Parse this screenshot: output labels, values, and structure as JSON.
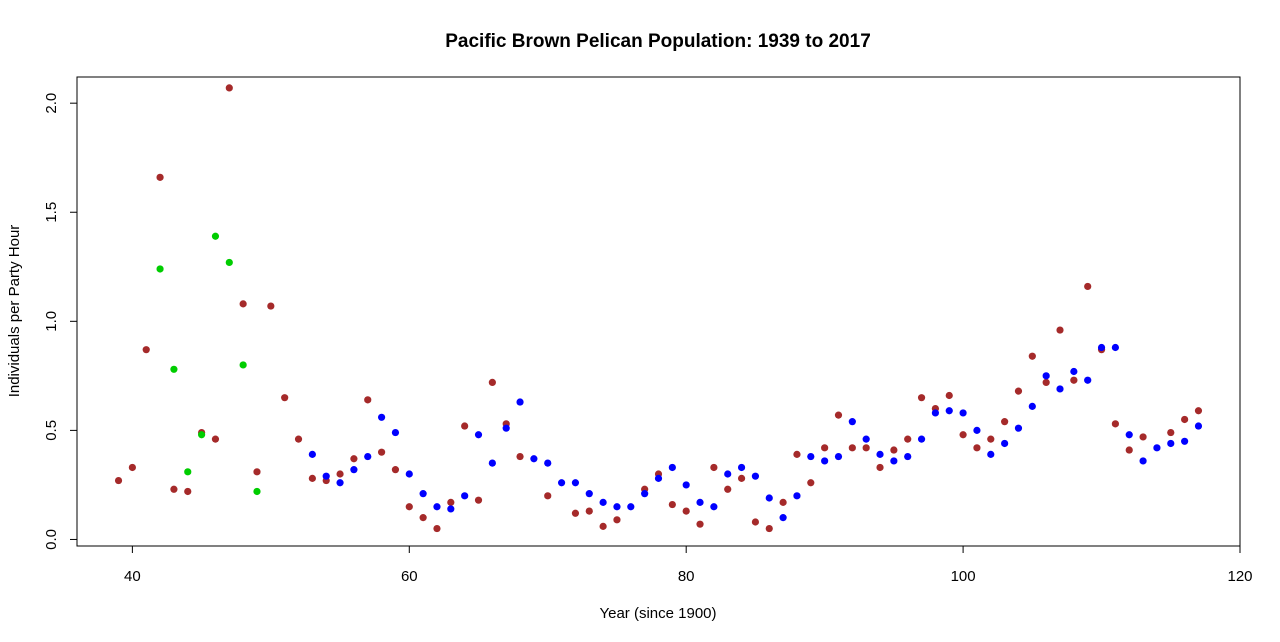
{
  "chart_data": {
    "type": "scatter",
    "title": "Pacific Brown Pelican Population: 1939 to 2017",
    "xlabel": "Year (since 1900)",
    "ylabel": "Individuals per Party Hour",
    "xlim": [
      36,
      120
    ],
    "ylim": [
      -0.03,
      2.12
    ],
    "x_ticks": [
      40,
      60,
      80,
      100,
      120
    ],
    "y_ticks": [
      0.0,
      0.5,
      1.0,
      1.5,
      2.0
    ],
    "y_tick_labels": [
      "0.0",
      "0.5",
      "1.0",
      "1.5",
      "2.0"
    ],
    "grid": false,
    "series": [
      {
        "color": "#a52a2a",
        "x": [
          39,
          40,
          41,
          42,
          43,
          44,
          45,
          46,
          47,
          48,
          49,
          50,
          51,
          52,
          53,
          54,
          55,
          56,
          57,
          58,
          59,
          60,
          61,
          62,
          63,
          64,
          65,
          66,
          67,
          68,
          70,
          72,
          73,
          74,
          75,
          77,
          78,
          79,
          80,
          81,
          82,
          83,
          84,
          85,
          86,
          87,
          88,
          89,
          90,
          91,
          92,
          93,
          94,
          95,
          96,
          97,
          98,
          99,
          100,
          101,
          102,
          103,
          104,
          105,
          106,
          107,
          108,
          109,
          110,
          111,
          112,
          113,
          115,
          116,
          117
        ],
        "y": [
          0.27,
          0.33,
          0.87,
          1.66,
          0.23,
          0.22,
          0.49,
          0.46,
          2.07,
          1.08,
          0.31,
          1.07,
          0.65,
          0.46,
          0.28,
          0.27,
          0.3,
          0.37,
          0.64,
          0.4,
          0.32,
          0.15,
          0.1,
          0.05,
          0.17,
          0.52,
          0.18,
          0.72,
          0.53,
          0.38,
          0.2,
          0.12,
          0.13,
          0.06,
          0.09,
          0.23,
          0.3,
          0.16,
          0.13,
          0.07,
          0.33,
          0.23,
          0.28,
          0.08,
          0.05,
          0.17,
          0.39,
          0.26,
          0.42,
          0.57,
          0.42,
          0.42,
          0.33,
          0.41,
          0.46,
          0.65,
          0.6,
          0.66,
          0.48,
          0.42,
          0.46,
          0.54,
          0.68,
          0.84,
          0.72,
          0.96,
          0.73,
          1.16,
          0.87,
          0.53,
          0.41,
          0.47,
          0.49,
          0.55,
          0.59
        ]
      },
      {
        "color": "#0000ff",
        "x": [
          53,
          54,
          55,
          56,
          57,
          58,
          59,
          60,
          61,
          62,
          63,
          64,
          65,
          66,
          67,
          68,
          69,
          70,
          71,
          72,
          73,
          74,
          75,
          76,
          77,
          78,
          79,
          80,
          81,
          82,
          83,
          84,
          85,
          86,
          87,
          88,
          89,
          90,
          91,
          92,
          93,
          94,
          95,
          96,
          97,
          98,
          99,
          100,
          101,
          102,
          103,
          104,
          105,
          106,
          107,
          108,
          109,
          110,
          111,
          112,
          113,
          114,
          115,
          116,
          117
        ],
        "y": [
          0.39,
          0.29,
          0.26,
          0.32,
          0.38,
          0.56,
          0.49,
          0.3,
          0.21,
          0.15,
          0.14,
          0.2,
          0.48,
          0.35,
          0.51,
          0.63,
          0.37,
          0.35,
          0.26,
          0.26,
          0.21,
          0.17,
          0.15,
          0.15,
          0.21,
          0.28,
          0.33,
          0.25,
          0.17,
          0.15,
          0.3,
          0.33,
          0.29,
          0.19,
          0.1,
          0.2,
          0.38,
          0.36,
          0.38,
          0.54,
          0.46,
          0.39,
          0.36,
          0.38,
          0.46,
          0.58,
          0.59,
          0.58,
          0.5,
          0.39,
          0.44,
          0.51,
          0.61,
          0.75,
          0.69,
          0.77,
          0.73,
          0.88,
          0.88,
          0.48,
          0.36,
          0.42,
          0.44,
          0.45,
          0.52
        ]
      },
      {
        "color": "#00cd00",
        "x": [
          42,
          43,
          44,
          45,
          46,
          47,
          48,
          49
        ],
        "y": [
          1.24,
          0.78,
          0.31,
          0.48,
          1.39,
          1.27,
          0.8,
          0.22
        ]
      }
    ]
  }
}
